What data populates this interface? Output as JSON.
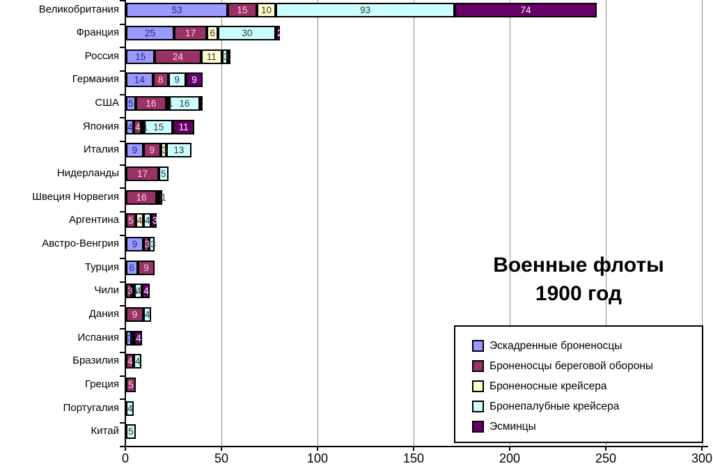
{
  "title": {
    "line1": "Военные флоты",
    "line2": "1900 год"
  },
  "chart_data": {
    "type": "bar",
    "orientation": "horizontal",
    "stacked": true,
    "title": "Военные флоты 1900 год",
    "xlim": [
      0,
      300
    ],
    "x_ticks": [
      "0",
      "50",
      "100",
      "150",
      "200",
      "250",
      "300"
    ],
    "grid": true,
    "legend_position": "bottom-right",
    "categories": [
      "Великобритания",
      "Франция",
      "Россия",
      "Германия",
      "США",
      "Япония",
      "Италия",
      "Нидерланды",
      "Швеция Норвегия",
      "Аргентина",
      "Австро-Венгрия",
      "Турция",
      "Чили",
      "Дания",
      "Испания",
      "Бразилия",
      "Греция",
      "Португалия",
      "Китай"
    ],
    "series": [
      {
        "name": "Эскадренные броненосцы",
        "color": "#9999FF",
        "label_color": "#26267F",
        "values": [
          53,
          25,
          15,
          14,
          5,
          4,
          9,
          0,
          0,
          0,
          9,
          6,
          0,
          0,
          3,
          0,
          0,
          0,
          0
        ]
      },
      {
        "name": "Броненосцы береговой обороны",
        "color": "#993366",
        "label_color": "#FFCCF2",
        "values": [
          15,
          17,
          24,
          8,
          16,
          4,
          9,
          17,
          16,
          5,
          3,
          9,
          3,
          9,
          0,
          4,
          5,
          0,
          0
        ]
      },
      {
        "name": "Броненосные крейсера",
        "color": "#FFFFCC",
        "label_color": "#333333",
        "values": [
          10,
          6,
          11,
          0,
          1,
          1,
          3,
          0,
          1,
          4,
          0,
          0,
          1,
          0,
          1,
          0,
          0,
          0,
          0
        ]
      },
      {
        "name": "Бронепалубные крейсера",
        "color": "#CCFFFF",
        "label_color": "#333333",
        "values": [
          93,
          30,
          3,
          9,
          16,
          15,
          13,
          5,
          1,
          4,
          3,
          0,
          4,
          4,
          0,
          4,
          0,
          4,
          5
        ]
      },
      {
        "name": "Эсминцы",
        "color": "#660066",
        "label_color": "#FFFFFF",
        "values": [
          74,
          2,
          1,
          9,
          1,
          11,
          0,
          0,
          0,
          3,
          0,
          0,
          4,
          0,
          4,
          0,
          0,
          0,
          0
        ]
      }
    ]
  }
}
